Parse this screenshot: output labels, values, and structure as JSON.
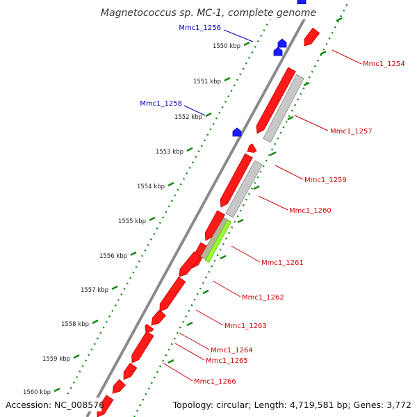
{
  "title": "Magnetococcus sp. MC-1, complete genome",
  "accession": "Accession: NC_008576",
  "topology": "Topology: circular; Length: 4,719,581 bp; Genes: 3,772",
  "colors": {
    "backbone": "#8a8a8a",
    "forward_gene": "#ff1a1a",
    "reverse_gene": "#ff1a1a",
    "rna_gene": "#1a1aff",
    "pseudo_gene": "#c8c8c8",
    "highlight_gene": "#99ff33",
    "tick_dots": "#118811",
    "label_red": "#cc0000",
    "label_blue": "#0000bb"
  },
  "ticks": [
    {
      "label": "1550 kbp",
      "kbp": 1550
    },
    {
      "label": "1551 kbp",
      "kbp": 1551
    },
    {
      "label": "1552 kbp",
      "kbp": 1552
    },
    {
      "label": "1553 kbp",
      "kbp": 1553
    },
    {
      "label": "1554 kbp",
      "kbp": 1554
    },
    {
      "label": "1555 kbp",
      "kbp": 1555
    },
    {
      "label": "1556 kbp",
      "kbp": 1556
    },
    {
      "label": "1557 kbp",
      "kbp": 1557
    },
    {
      "label": "1558 kbp",
      "kbp": 1558
    },
    {
      "label": "1559 kbp",
      "kbp": 1559
    },
    {
      "label": "1560 kbp",
      "kbp": 1560
    }
  ],
  "gene_labels": [
    {
      "name": "Mmc1_1256",
      "color": "blue"
    },
    {
      "name": "Mmc1_1258",
      "color": "blue"
    },
    {
      "name": "Mmc1_1254",
      "color": "red"
    },
    {
      "name": "Mmc1_1257",
      "color": "red"
    },
    {
      "name": "Mmc1_1259",
      "color": "red"
    },
    {
      "name": "Mmc1_1260",
      "color": "red"
    },
    {
      "name": "Mmc1_1261",
      "color": "red"
    },
    {
      "name": "Mmc1_1262",
      "color": "red"
    },
    {
      "name": "Mmc1_1263",
      "color": "red"
    },
    {
      "name": "Mmc1_1264",
      "color": "red"
    },
    {
      "name": "Mmc1_1265",
      "color": "red"
    },
    {
      "name": "Mmc1_1266",
      "color": "red"
    }
  ]
}
